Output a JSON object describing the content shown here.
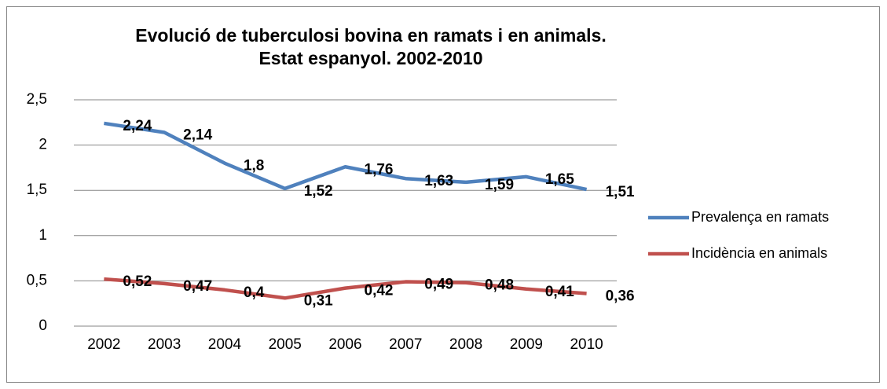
{
  "chart_data": {
    "type": "line",
    "title": [
      "Evolució de tuberculosi bovina en ramats i en animals.",
      "Estat espanyol. 2002-2010"
    ],
    "categories": [
      "2002",
      "2003",
      "2004",
      "2005",
      "2006",
      "2007",
      "2008",
      "2009",
      "2010"
    ],
    "series": [
      {
        "name": "Prevalença en ramats",
        "color": "#4f81bd",
        "values": [
          2.24,
          2.14,
          1.8,
          1.52,
          1.76,
          1.63,
          1.59,
          1.65,
          1.51
        ],
        "value_labels": [
          "2,24",
          "2,14",
          "1,8",
          "1,52",
          "1,76",
          "1,63",
          "1,59",
          "1,65",
          "1,51"
        ]
      },
      {
        "name": "Incidència en animals",
        "color": "#c0504d",
        "values": [
          0.52,
          0.47,
          0.4,
          0.31,
          0.42,
          0.49,
          0.48,
          0.41,
          0.36
        ],
        "value_labels": [
          "0,52",
          "0,47",
          "0,4",
          "0,31",
          "0,42",
          "0,49",
          "0,48",
          "0,41",
          "0,36"
        ]
      }
    ],
    "ylim": [
      0,
      2.5
    ],
    "yticks": [
      0,
      {
        "value": 0.5,
        "label": "0,5"
      },
      1,
      {
        "value": 1.5,
        "label": "1,5"
      },
      2,
      {
        "value": 2.5,
        "label": "2,5"
      }
    ],
    "grid": true,
    "legend": "right"
  }
}
